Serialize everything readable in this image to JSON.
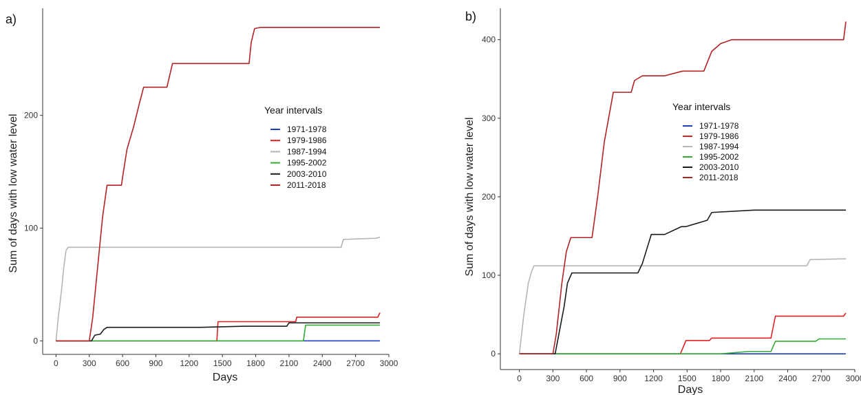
{
  "chart_data": [
    {
      "type": "line",
      "panel_label": "a)",
      "xlabel": "Days",
      "ylabel": "Sum of days with low water level",
      "xlim": [
        -120,
        3000
      ],
      "ylim": [
        -12,
        295
      ],
      "xticks": [
        0,
        300,
        600,
        900,
        1200,
        1500,
        1800,
        2100,
        2400,
        2700,
        3000
      ],
      "yticks": [
        0,
        100,
        200
      ],
      "legend_title": "Year intervals",
      "legend_position": "right-middle",
      "grid": false,
      "series": [
        {
          "name": "1971-1978",
          "color": "#1f3fbf",
          "x": [
            0,
            2920
          ],
          "y": [
            0,
            0
          ]
        },
        {
          "name": "1979-1986",
          "color": "#e02020",
          "x": [
            0,
            1450,
            1460,
            2160,
            2170,
            2900,
            2920
          ],
          "y": [
            0,
            0,
            17,
            17,
            21,
            21,
            25
          ]
        },
        {
          "name": "1987-1994",
          "color": "#b5b5b5",
          "x": [
            0,
            20,
            50,
            70,
            90,
            110,
            2570,
            2590,
            2880,
            2920
          ],
          "y": [
            0,
            20,
            45,
            65,
            80,
            83,
            83,
            90,
            91,
            92
          ]
        },
        {
          "name": "1995-2002",
          "color": "#33aa33",
          "x": [
            0,
            2230,
            2250,
            2920
          ],
          "y": [
            0,
            0,
            14,
            14
          ]
        },
        {
          "name": "2003-2010",
          "color": "#1a1a1a",
          "x": [
            0,
            320,
            350,
            400,
            430,
            460,
            1300,
            1700,
            2080,
            2100,
            2920
          ],
          "y": [
            0,
            0,
            5,
            6,
            10,
            12,
            12,
            13,
            13,
            16,
            16
          ]
        },
        {
          "name": "2011-2018",
          "color": "#b22222",
          "x": [
            0,
            300,
            330,
            380,
            420,
            460,
            500,
            590,
            600,
            640,
            700,
            750,
            790,
            820,
            1000,
            1050,
            1740,
            1760,
            1790,
            1840,
            2920
          ],
          "y": [
            0,
            0,
            20,
            70,
            110,
            138,
            138,
            138,
            145,
            170,
            190,
            210,
            225,
            225,
            225,
            246,
            246,
            265,
            277,
            278,
            278
          ]
        }
      ]
    },
    {
      "type": "line",
      "panel_label": "b)",
      "xlabel": "Days",
      "ylabel": "Sum of days with low water level",
      "xlim": [
        -170,
        3000
      ],
      "ylim": [
        -20,
        440
      ],
      "xticks": [
        0,
        300,
        600,
        900,
        1200,
        1500,
        1800,
        2100,
        2400,
        2700,
        3000
      ],
      "yticks": [
        0,
        100,
        200,
        300,
        400
      ],
      "legend_title": "Year intervals",
      "legend_position": "right-middle",
      "grid": false,
      "series": [
        {
          "name": "1971-1978",
          "color": "#1f3fbf",
          "x": [
            0,
            2920
          ],
          "y": [
            0,
            0
          ]
        },
        {
          "name": "1979-1986",
          "color": "#e02020",
          "x": [
            0,
            1440,
            1490,
            1700,
            1720,
            2250,
            2290,
            2900,
            2920
          ],
          "y": [
            0,
            0,
            17,
            17,
            20,
            20,
            48,
            48,
            52
          ]
        },
        {
          "name": "1987-1994",
          "color": "#b5b5b5",
          "x": [
            0,
            40,
            80,
            110,
            130,
            2570,
            2600,
            2920
          ],
          "y": [
            0,
            50,
            90,
            105,
            112,
            112,
            120,
            121
          ]
        },
        {
          "name": "1995-2002",
          "color": "#33aa33",
          "x": [
            0,
            1800,
            2050,
            2250,
            2290,
            2650,
            2680,
            2920
          ],
          "y": [
            0,
            0,
            3,
            3,
            16,
            16,
            19,
            19
          ]
        },
        {
          "name": "2003-2010",
          "color": "#1a1a1a",
          "x": [
            0,
            320,
            360,
            400,
            430,
            470,
            1060,
            1100,
            1180,
            1300,
            1450,
            1490,
            1680,
            1720,
            2100,
            2920
          ],
          "y": [
            0,
            0,
            30,
            60,
            90,
            103,
            103,
            115,
            152,
            152,
            162,
            162,
            170,
            180,
            183,
            183
          ]
        },
        {
          "name": "2011-2018",
          "color": "#b22222",
          "x": [
            0,
            300,
            330,
            380,
            420,
            460,
            650,
            700,
            760,
            840,
            1000,
            1030,
            1100,
            1300,
            1460,
            1650,
            1720,
            1800,
            1900,
            2900,
            2920
          ],
          "y": [
            0,
            0,
            25,
            90,
            130,
            148,
            148,
            200,
            270,
            333,
            333,
            348,
            354,
            354,
            360,
            360,
            385,
            395,
            400,
            400,
            423
          ]
        }
      ]
    }
  ]
}
